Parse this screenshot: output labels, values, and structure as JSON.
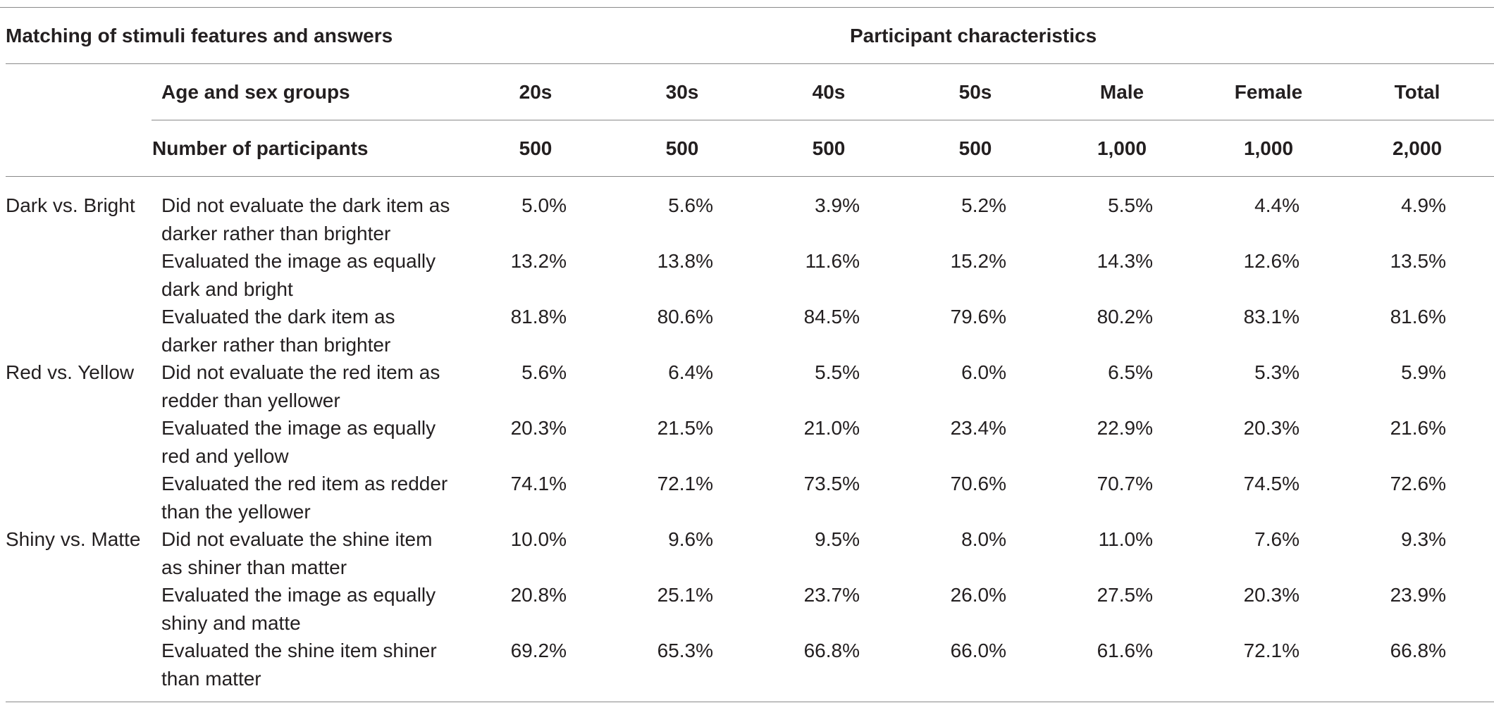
{
  "header": {
    "left_heading": "Matching of stimuli features and answers",
    "right_heading": "Participant characteristics",
    "group_row_label": "Age and sex groups",
    "count_row_label": "Number of participants",
    "columns": [
      "20s",
      "30s",
      "40s",
      "50s",
      "Male",
      "Female",
      "Total"
    ],
    "counts": [
      "500",
      "500",
      "500",
      "500",
      "1,000",
      "1,000",
      "2,000"
    ]
  },
  "rows": [
    {
      "category": "Dark vs. Bright",
      "line1": "Did not evaluate the dark item as",
      "line2": "darker rather than brighter",
      "values": [
        "5.0%",
        "5.6%",
        "3.9%",
        "5.2%",
        "5.5%",
        "4.4%",
        "4.9%"
      ]
    },
    {
      "category": "",
      "line1": "Evaluated the image as equally",
      "line2": "dark and bright",
      "values": [
        "13.2%",
        "13.8%",
        "11.6%",
        "15.2%",
        "14.3%",
        "12.6%",
        "13.5%"
      ]
    },
    {
      "category": "",
      "line1": "Evaluated the dark item as",
      "line2": "darker rather than brighter",
      "values": [
        "81.8%",
        "80.6%",
        "84.5%",
        "79.6%",
        "80.2%",
        "83.1%",
        "81.6%"
      ]
    },
    {
      "category": "Red vs. Yellow",
      "line1": "Did not evaluate the red item as",
      "line2": "redder than yellower",
      "values": [
        "5.6%",
        "6.4%",
        "5.5%",
        "6.0%",
        "6.5%",
        "5.3%",
        "5.9%"
      ]
    },
    {
      "category": "",
      "line1": "Evaluated the image as equally",
      "line2": "red and yellow",
      "values": [
        "20.3%",
        "21.5%",
        "21.0%",
        "23.4%",
        "22.9%",
        "20.3%",
        "21.6%"
      ]
    },
    {
      "category": "",
      "line1": "Evaluated the red item as redder",
      "line2": "than the yellower",
      "values": [
        "74.1%",
        "72.1%",
        "73.5%",
        "70.6%",
        "70.7%",
        "74.5%",
        "72.6%"
      ]
    },
    {
      "category": "Shiny vs. Matte",
      "line1": "Did not evaluate the shine item",
      "line2": "as shiner than matter",
      "values": [
        "10.0%",
        "9.6%",
        "9.5%",
        "8.0%",
        "11.0%",
        "7.6%",
        "9.3%"
      ]
    },
    {
      "category": "",
      "line1": "Evaluated the image as equally",
      "line2": "shiny and matte",
      "values": [
        "20.8%",
        "25.1%",
        "23.7%",
        "26.0%",
        "27.5%",
        "20.3%",
        "23.9%"
      ]
    },
    {
      "category": "",
      "line1": "Evaluated the shine item shiner",
      "line2": "than matter",
      "values": [
        "69.2%",
        "65.3%",
        "66.8%",
        "66.0%",
        "61.6%",
        "72.1%",
        "66.8%"
      ]
    }
  ]
}
